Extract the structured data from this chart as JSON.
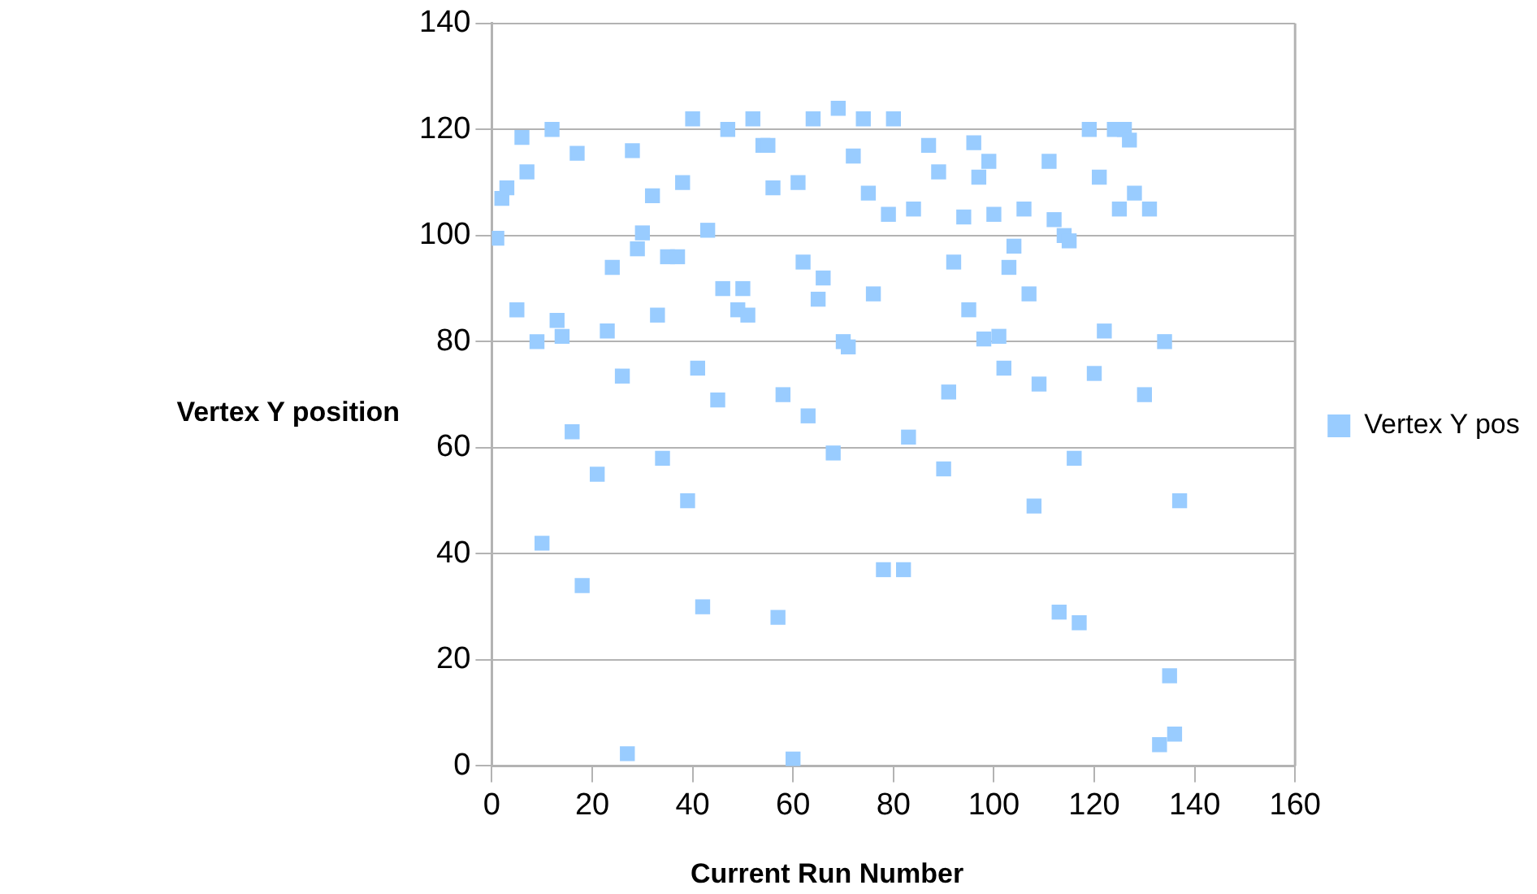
{
  "chart_data": {
    "type": "scatter",
    "xlabel": "Current Run Number",
    "ylabel": "Vertex Y position",
    "xlim": [
      0,
      160
    ],
    "xticks": [
      0,
      20,
      40,
      60,
      80,
      100,
      120,
      140,
      160
    ],
    "ylim": [
      0,
      140
    ],
    "yticks": [
      0,
      20,
      40,
      60,
      80,
      100,
      120,
      140
    ],
    "grid": "y",
    "legend": "right",
    "marker": "square",
    "series": [
      {
        "name": "Vertex Y pos",
        "color": "#99ccff",
        "x": [
          1,
          2,
          3,
          5,
          6,
          7,
          9,
          10,
          12,
          13,
          14,
          16,
          17,
          18,
          21,
          23,
          24,
          26,
          27,
          28,
          29,
          30,
          32,
          33,
          34,
          35,
          37,
          38,
          39,
          40,
          41,
          42,
          43,
          45,
          46,
          47,
          49,
          50,
          51,
          52,
          54,
          55,
          56,
          57,
          58,
          60,
          61,
          62,
          63,
          64,
          65,
          66,
          68,
          69,
          70,
          71,
          72,
          74,
          75,
          76,
          78,
          79,
          80,
          82,
          83,
          84,
          87,
          89,
          90,
          91,
          92,
          94,
          95,
          96,
          97,
          98,
          99,
          100,
          101,
          102,
          103,
          104,
          106,
          107,
          108,
          109,
          111,
          112,
          113,
          114,
          115,
          116,
          117,
          119,
          120,
          121,
          122,
          124,
          125,
          126,
          127,
          128,
          130,
          131,
          133,
          134,
          135,
          136,
          137
        ],
        "values": [
          99.5,
          107,
          109,
          86,
          118.5,
          112,
          80,
          42,
          120,
          84,
          81,
          63,
          115.5,
          34,
          55,
          82,
          94,
          73.5,
          2.3,
          116,
          97.5,
          100.5,
          107.5,
          85,
          58,
          96,
          96,
          110,
          50,
          122,
          75,
          30,
          101,
          69,
          90,
          120,
          86,
          90,
          85,
          122,
          117,
          117,
          109,
          28,
          70,
          1.3,
          110,
          95,
          66,
          122,
          88,
          92,
          59,
          124,
          80,
          79,
          115,
          122,
          108,
          89,
          37,
          104,
          122,
          37,
          62,
          105,
          117,
          112,
          56,
          70.5,
          95,
          103.5,
          86,
          117.5,
          111,
          80.5,
          114,
          104,
          81,
          75,
          94,
          98,
          105,
          89,
          49,
          72,
          114,
          103,
          29,
          100,
          99,
          58,
          27,
          120,
          74,
          111,
          82,
          120,
          105,
          120,
          118,
          108,
          70,
          105,
          4,
          80,
          17,
          6,
          50
        ]
      }
    ]
  }
}
